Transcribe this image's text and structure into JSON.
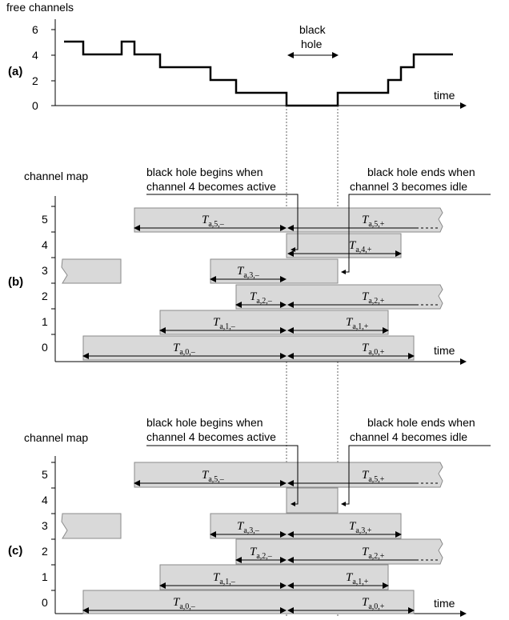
{
  "panel_a": {
    "panel_label": "(a)",
    "y_axis_label": "free channels",
    "y_ticks": [
      "0",
      "2",
      "4",
      "6"
    ],
    "x_axis_label": "time",
    "black_hole_line1": "black",
    "black_hole_line2": "hole",
    "free_channel_steps": [
      {
        "t": 0,
        "v": 5
      },
      {
        "t": 1,
        "v": 4
      },
      {
        "t": 2,
        "v": 5
      },
      {
        "t": 3,
        "v": 4
      },
      {
        "t": 4,
        "v": 3
      },
      {
        "t": 5,
        "v": 2
      },
      {
        "t": 6,
        "v": 1
      },
      {
        "t": 7,
        "v": 0
      },
      {
        "t": 8,
        "v": 1
      },
      {
        "t": 9,
        "v": 2
      },
      {
        "t": 10,
        "v": 3
      },
      {
        "t": 11,
        "v": 4
      }
    ]
  },
  "panel_b": {
    "panel_label": "(b)",
    "y_axis_label": "channel map",
    "x_axis_label": "time",
    "channel_labels": [
      "5",
      "4",
      "3",
      "2",
      "1",
      "0"
    ],
    "annotation_left_line1": "black hole begins when",
    "annotation_left_line2": "channel 4 becomes active",
    "annotation_right_line1": "black hole ends when",
    "annotation_right_line2": "channel 3 becomes idle",
    "durations_minus": [
      {
        "ch": "5",
        "main": "T",
        "sub": "a,5,–"
      },
      {
        "ch": "3",
        "main": "T",
        "sub": "a,3,–"
      },
      {
        "ch": "2",
        "main": "T",
        "sub": "a,2,–"
      },
      {
        "ch": "1",
        "main": "T",
        "sub": "a,1,–"
      },
      {
        "ch": "0",
        "main": "T",
        "sub": "a,0,–"
      }
    ],
    "durations_plus": [
      {
        "ch": "5",
        "main": "T",
        "sub": "a,5,+"
      },
      {
        "ch": "4",
        "main": "T",
        "sub": "a,4,+"
      },
      {
        "ch": "2",
        "main": "T",
        "sub": "a,2,+"
      },
      {
        "ch": "1",
        "main": "T",
        "sub": "a,1,+"
      },
      {
        "ch": "0",
        "main": "T",
        "sub": "a,0,+"
      }
    ]
  },
  "panel_c": {
    "panel_label": "(c)",
    "y_axis_label": "channel map",
    "x_axis_label": "time",
    "channel_labels": [
      "5",
      "4",
      "3",
      "2",
      "1",
      "0"
    ],
    "annotation_left_line1": "black hole begins when",
    "annotation_left_line2": "channel 4 becomes active",
    "annotation_right_line1": "black hole ends when",
    "annotation_right_line2": "channel 4 becomes idle",
    "durations_minus": [
      {
        "ch": "5",
        "main": "T",
        "sub": "a,5,–"
      },
      {
        "ch": "3",
        "main": "T",
        "sub": "a,3,–"
      },
      {
        "ch": "2",
        "main": "T",
        "sub": "a,2,–"
      },
      {
        "ch": "1",
        "main": "T",
        "sub": "a,1,–"
      },
      {
        "ch": "0",
        "main": "T",
        "sub": "a,0,–"
      }
    ],
    "durations_plus": [
      {
        "ch": "5",
        "main": "T",
        "sub": "a,5,+"
      },
      {
        "ch": "3",
        "main": "T",
        "sub": "a,3,+"
      },
      {
        "ch": "2",
        "main": "T",
        "sub": "a,2,+"
      },
      {
        "ch": "1",
        "main": "T",
        "sub": "a,1,+"
      },
      {
        "ch": "0",
        "main": "T",
        "sub": "a,0,+"
      }
    ]
  }
}
